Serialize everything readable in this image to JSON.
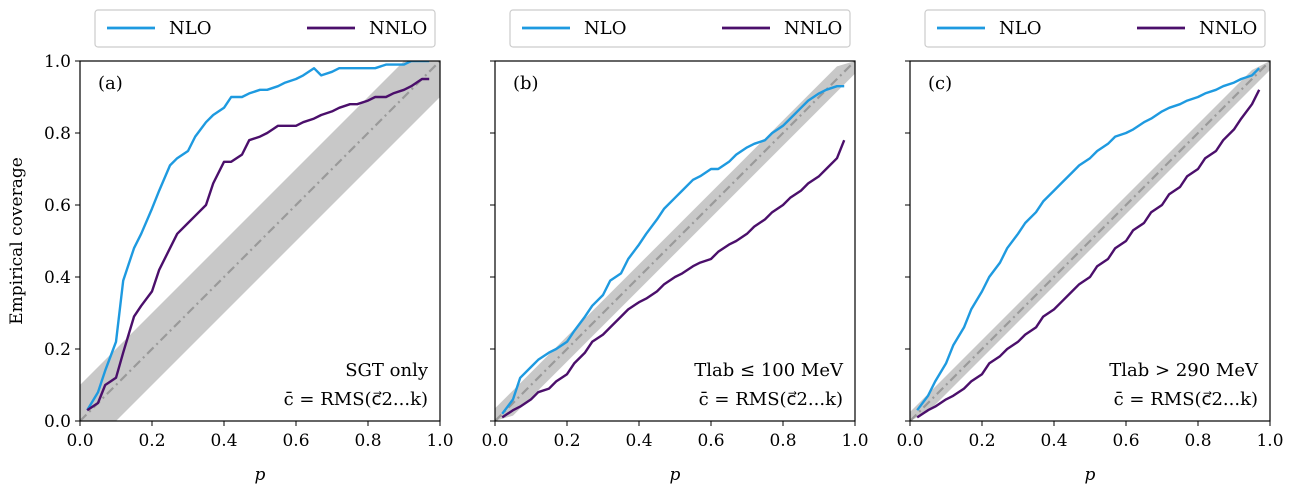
{
  "figure": {
    "ylabel": "Empirical coverage",
    "xlabel": "p"
  },
  "colors": {
    "NLO": "#1e9ae0",
    "NNLO": "#4b0f6b",
    "diagonal": "#9a9a9a",
    "band": "#c8c8c8"
  },
  "chart_data": [
    {
      "type": "line",
      "panel_label": "(a)",
      "annotation_line1": "SGT only",
      "annotation_line2": "c̄ = RMS(c⃗2...k)",
      "xlim": [
        0,
        1
      ],
      "ylim": [
        0,
        1
      ],
      "xticks": [
        "0.0",
        "0.2",
        "0.4",
        "0.6",
        "0.8",
        "1.0"
      ],
      "yticks": [
        "0.0",
        "0.2",
        "0.4",
        "0.6",
        "0.8",
        "1.0"
      ],
      "grid": false,
      "legend": "top",
      "diagonal_band_halfwidth": 0.1,
      "series": [
        {
          "name": "NLO",
          "x": [
            0.02,
            0.05,
            0.07,
            0.1,
            0.12,
            0.15,
            0.17,
            0.2,
            0.22,
            0.25,
            0.27,
            0.3,
            0.32,
            0.35,
            0.37,
            0.4,
            0.42,
            0.45,
            0.47,
            0.5,
            0.52,
            0.55,
            0.57,
            0.6,
            0.62,
            0.65,
            0.67,
            0.7,
            0.72,
            0.75,
            0.77,
            0.8,
            0.82,
            0.85,
            0.87,
            0.9,
            0.92,
            0.95,
            0.97
          ],
          "y": [
            0.03,
            0.08,
            0.14,
            0.22,
            0.39,
            0.48,
            0.52,
            0.59,
            0.64,
            0.71,
            0.73,
            0.75,
            0.79,
            0.83,
            0.85,
            0.87,
            0.9,
            0.9,
            0.91,
            0.92,
            0.92,
            0.93,
            0.94,
            0.95,
            0.96,
            0.98,
            0.96,
            0.97,
            0.98,
            0.98,
            0.98,
            0.98,
            0.98,
            0.99,
            0.99,
            0.99,
            1.0,
            1.0,
            1.0
          ]
        },
        {
          "name": "NNLO",
          "x": [
            0.02,
            0.05,
            0.07,
            0.1,
            0.12,
            0.15,
            0.17,
            0.2,
            0.22,
            0.25,
            0.27,
            0.3,
            0.32,
            0.35,
            0.37,
            0.4,
            0.42,
            0.45,
            0.47,
            0.5,
            0.52,
            0.55,
            0.57,
            0.6,
            0.62,
            0.65,
            0.67,
            0.7,
            0.72,
            0.75,
            0.77,
            0.8,
            0.82,
            0.85,
            0.87,
            0.9,
            0.92,
            0.95,
            0.97
          ],
          "y": [
            0.03,
            0.05,
            0.1,
            0.12,
            0.19,
            0.29,
            0.32,
            0.36,
            0.42,
            0.48,
            0.52,
            0.55,
            0.57,
            0.6,
            0.66,
            0.72,
            0.72,
            0.74,
            0.78,
            0.79,
            0.8,
            0.82,
            0.82,
            0.82,
            0.83,
            0.84,
            0.85,
            0.86,
            0.87,
            0.88,
            0.88,
            0.89,
            0.9,
            0.9,
            0.91,
            0.92,
            0.93,
            0.95,
            0.95
          ]
        }
      ]
    },
    {
      "type": "line",
      "panel_label": "(b)",
      "annotation_line1": "Tlab ≤ 100 MeV",
      "annotation_line2": "c̄ = RMS(c⃗2...k)",
      "xlim": [
        0,
        1
      ],
      "ylim": [
        0,
        1
      ],
      "xticks": [
        "0.0",
        "0.2",
        "0.4",
        "0.6",
        "0.8",
        "1.0"
      ],
      "grid": false,
      "legend": "top",
      "diagonal_band_halfwidth": 0.035,
      "series": [
        {
          "name": "NLO",
          "x": [
            0.02,
            0.05,
            0.07,
            0.1,
            0.12,
            0.15,
            0.17,
            0.2,
            0.22,
            0.25,
            0.27,
            0.3,
            0.32,
            0.35,
            0.37,
            0.4,
            0.42,
            0.45,
            0.47,
            0.5,
            0.52,
            0.55,
            0.57,
            0.6,
            0.62,
            0.65,
            0.67,
            0.7,
            0.72,
            0.75,
            0.77,
            0.8,
            0.82,
            0.85,
            0.87,
            0.9,
            0.92,
            0.95,
            0.97
          ],
          "y": [
            0.02,
            0.06,
            0.12,
            0.15,
            0.17,
            0.19,
            0.2,
            0.22,
            0.25,
            0.29,
            0.32,
            0.35,
            0.39,
            0.41,
            0.45,
            0.49,
            0.52,
            0.56,
            0.59,
            0.62,
            0.64,
            0.67,
            0.68,
            0.7,
            0.7,
            0.72,
            0.74,
            0.76,
            0.77,
            0.78,
            0.8,
            0.82,
            0.84,
            0.87,
            0.89,
            0.91,
            0.92,
            0.93,
            0.93
          ]
        },
        {
          "name": "NNLO",
          "x": [
            0.02,
            0.05,
            0.07,
            0.1,
            0.12,
            0.15,
            0.17,
            0.2,
            0.22,
            0.25,
            0.27,
            0.3,
            0.32,
            0.35,
            0.37,
            0.4,
            0.42,
            0.45,
            0.47,
            0.5,
            0.52,
            0.55,
            0.57,
            0.6,
            0.62,
            0.65,
            0.67,
            0.7,
            0.72,
            0.75,
            0.77,
            0.8,
            0.82,
            0.85,
            0.87,
            0.9,
            0.92,
            0.95,
            0.97
          ],
          "y": [
            0.01,
            0.03,
            0.04,
            0.06,
            0.08,
            0.09,
            0.11,
            0.13,
            0.16,
            0.19,
            0.22,
            0.24,
            0.26,
            0.29,
            0.31,
            0.33,
            0.34,
            0.36,
            0.38,
            0.4,
            0.41,
            0.43,
            0.44,
            0.45,
            0.47,
            0.49,
            0.5,
            0.52,
            0.54,
            0.56,
            0.58,
            0.6,
            0.62,
            0.64,
            0.66,
            0.68,
            0.7,
            0.73,
            0.78
          ]
        }
      ]
    },
    {
      "type": "line",
      "panel_label": "(c)",
      "annotation_line1": "Tlab > 290 MeV",
      "annotation_line2": "c̄ = RMS(c⃗2...k)",
      "xlim": [
        0,
        1
      ],
      "ylim": [
        0,
        1
      ],
      "xticks": [
        "0.0",
        "0.2",
        "0.4",
        "0.6",
        "0.8",
        "1.0"
      ],
      "grid": false,
      "legend": "top",
      "diagonal_band_halfwidth": 0.025,
      "series": [
        {
          "name": "NLO",
          "x": [
            0.02,
            0.05,
            0.07,
            0.1,
            0.12,
            0.15,
            0.17,
            0.2,
            0.22,
            0.25,
            0.27,
            0.3,
            0.32,
            0.35,
            0.37,
            0.4,
            0.42,
            0.45,
            0.47,
            0.5,
            0.52,
            0.55,
            0.57,
            0.6,
            0.62,
            0.65,
            0.67,
            0.7,
            0.72,
            0.75,
            0.77,
            0.8,
            0.82,
            0.85,
            0.87,
            0.9,
            0.92,
            0.95,
            0.97
          ],
          "y": [
            0.03,
            0.07,
            0.11,
            0.16,
            0.21,
            0.26,
            0.31,
            0.36,
            0.4,
            0.44,
            0.48,
            0.52,
            0.55,
            0.58,
            0.61,
            0.64,
            0.66,
            0.69,
            0.71,
            0.73,
            0.75,
            0.77,
            0.79,
            0.8,
            0.81,
            0.83,
            0.84,
            0.86,
            0.87,
            0.88,
            0.89,
            0.9,
            0.91,
            0.92,
            0.93,
            0.94,
            0.95,
            0.96,
            0.98
          ]
        },
        {
          "name": "NNLO",
          "x": [
            0.02,
            0.05,
            0.07,
            0.1,
            0.12,
            0.15,
            0.17,
            0.2,
            0.22,
            0.25,
            0.27,
            0.3,
            0.32,
            0.35,
            0.37,
            0.4,
            0.42,
            0.45,
            0.47,
            0.5,
            0.52,
            0.55,
            0.57,
            0.6,
            0.62,
            0.65,
            0.67,
            0.7,
            0.72,
            0.75,
            0.77,
            0.8,
            0.82,
            0.85,
            0.87,
            0.9,
            0.92,
            0.95,
            0.97
          ],
          "y": [
            0.01,
            0.03,
            0.04,
            0.06,
            0.07,
            0.09,
            0.11,
            0.13,
            0.16,
            0.18,
            0.2,
            0.22,
            0.24,
            0.26,
            0.29,
            0.31,
            0.33,
            0.36,
            0.38,
            0.4,
            0.43,
            0.45,
            0.48,
            0.5,
            0.53,
            0.55,
            0.58,
            0.6,
            0.63,
            0.65,
            0.68,
            0.7,
            0.73,
            0.75,
            0.78,
            0.81,
            0.84,
            0.88,
            0.92
          ]
        }
      ]
    }
  ]
}
